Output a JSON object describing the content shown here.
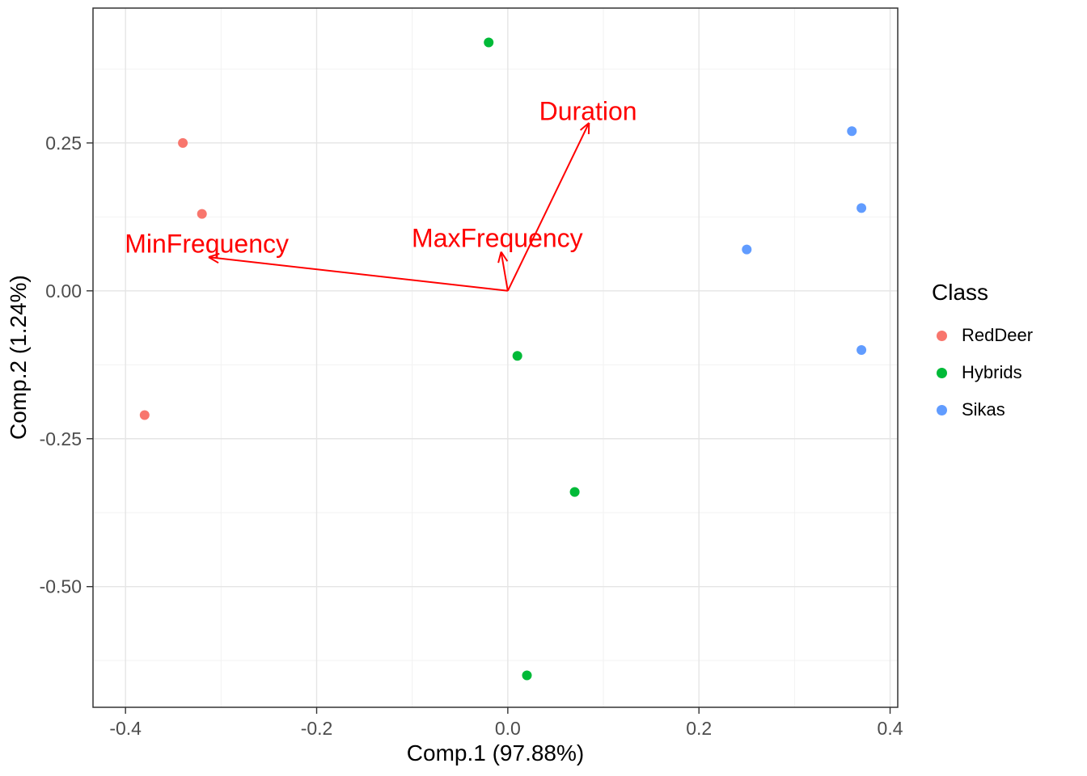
{
  "chart_data": {
    "type": "scatter",
    "title": "",
    "xlabel": "Comp.1 (97.88%)",
    "ylabel": "Comp.2 (1.24%)",
    "xlim": [
      -0.434,
      0.408
    ],
    "ylim": [
      -0.704,
      0.478
    ],
    "x_tick_values": [
      -0.4,
      -0.2,
      0.0,
      0.2,
      0.4
    ],
    "x_tick_labels": [
      "-0.4",
      "-0.2",
      "0.0",
      "0.2",
      "0.4"
    ],
    "y_tick_values": [
      0.25,
      0.0,
      -0.25,
      -0.5
    ],
    "y_tick_labels": [
      "0.25",
      "0.00",
      "-0.25",
      "-0.50"
    ],
    "x_minor_ticks": [
      -0.3,
      -0.1,
      0.1,
      0.3
    ],
    "y_minor_ticks": [
      0.375,
      0.125,
      -0.125,
      -0.375,
      -0.625
    ],
    "grid": true,
    "legend": {
      "title": "Class",
      "position": "right"
    },
    "series": [
      {
        "name": "RedDeer",
        "color": "#F8766D",
        "points": [
          [
            -0.34,
            0.25
          ],
          [
            -0.32,
            0.13
          ],
          [
            -0.38,
            -0.21
          ]
        ]
      },
      {
        "name": "Hybrids",
        "color": "#00BA38",
        "points": [
          [
            -0.02,
            0.42
          ],
          [
            0.01,
            -0.11
          ],
          [
            0.07,
            -0.34
          ],
          [
            0.02,
            -0.65
          ]
        ]
      },
      {
        "name": "Sikas",
        "color": "#619CFF",
        "points": [
          [
            0.36,
            0.27
          ],
          [
            0.37,
            0.14
          ],
          [
            0.25,
            0.07
          ],
          [
            0.37,
            -0.1
          ]
        ]
      }
    ],
    "loadings": {
      "color": "#FF0000",
      "origin": [
        0.0,
        0.0
      ],
      "arrows": [
        {
          "label": "Duration",
          "tip": [
            0.085,
            0.284
          ],
          "label_pos": [
            0.084,
            0.3
          ]
        },
        {
          "label": "MaxFrequency",
          "tip": [
            -0.007,
            0.066
          ],
          "label_pos": [
            -0.011,
            0.086
          ]
        },
        {
          "label": "MinFrequency",
          "tip": [
            -0.313,
            0.057
          ],
          "label_pos": [
            -0.315,
            0.076
          ]
        }
      ]
    },
    "style": {
      "panel_background": "#FFFFFF",
      "grid_major_color": "#E5E5E5",
      "grid_minor_color": "#F2F2F2",
      "panel_border_color": "#333333",
      "tick_label_color": "#4D4D4D"
    }
  }
}
